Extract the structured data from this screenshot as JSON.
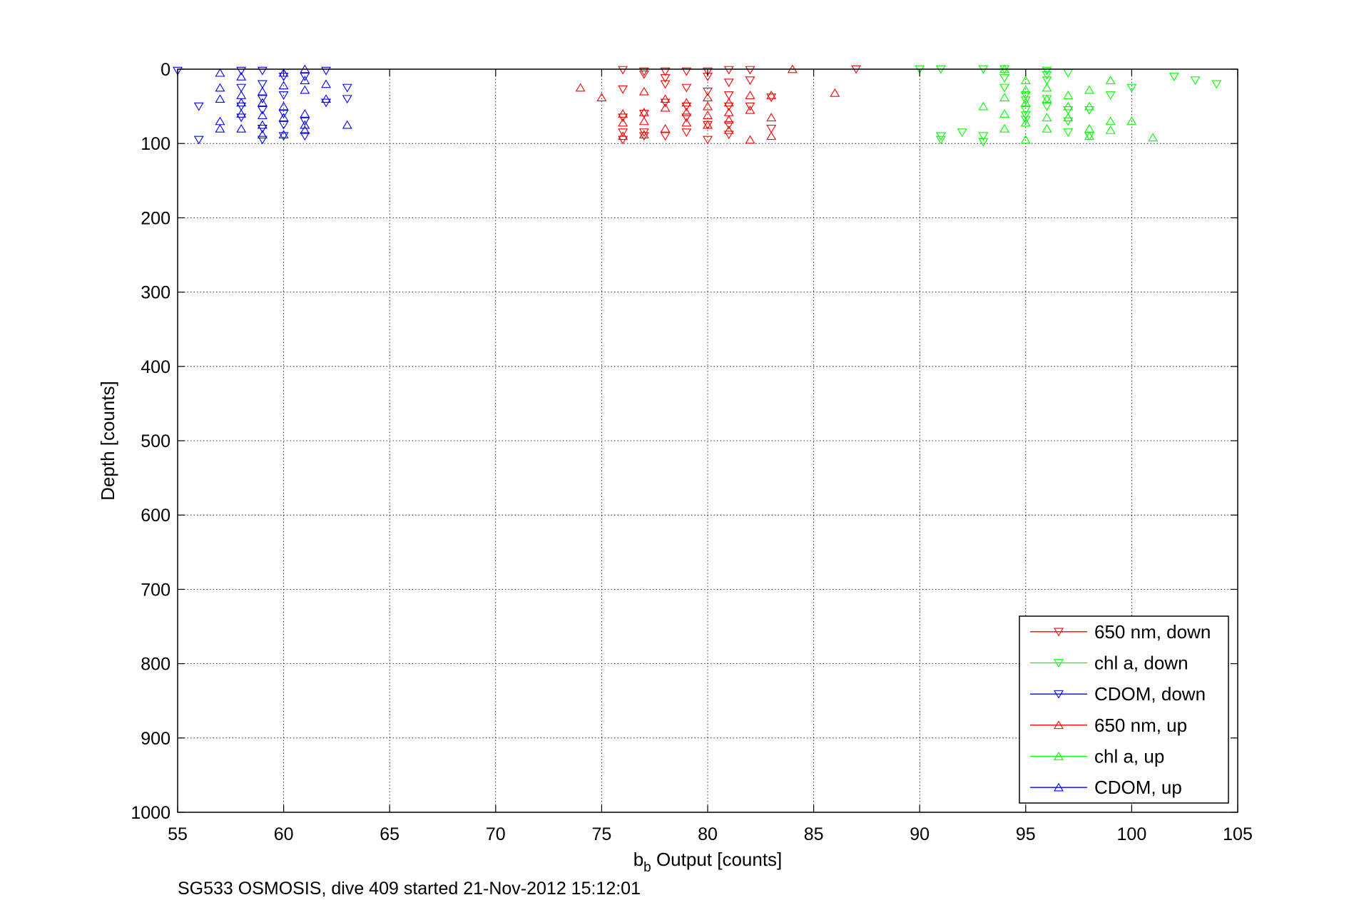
{
  "chart_data": {
    "type": "scatter",
    "title": "",
    "xlabel": {
      "main": "b",
      "sub": "b",
      "rest": " Output [counts]"
    },
    "ylabel": "Depth [counts]",
    "xlim": [
      55,
      105
    ],
    "ylim": [
      0,
      1000
    ],
    "y_reversed": true,
    "xticks": [
      55,
      60,
      65,
      70,
      75,
      80,
      85,
      90,
      95,
      100,
      105
    ],
    "yticks": [
      0,
      100,
      200,
      300,
      400,
      500,
      600,
      700,
      800,
      900,
      1000
    ],
    "grid": true,
    "legend_position": "bottom-right",
    "caption": "SG533 OSMOSIS, dive 409 started 21-Nov-2012 15:12:01",
    "series": [
      {
        "name": "650 nm, down",
        "color": "#ff0000",
        "marker": "triangle-down",
        "points": [
          [
            76,
            1
          ],
          [
            76,
            27
          ],
          [
            76,
            65
          ],
          [
            76,
            85
          ],
          [
            76,
            95
          ],
          [
            77,
            3
          ],
          [
            77,
            7
          ],
          [
            77,
            60
          ],
          [
            77,
            85
          ],
          [
            77,
            90
          ],
          [
            78,
            3
          ],
          [
            78,
            12
          ],
          [
            78,
            20
          ],
          [
            78,
            45
          ],
          [
            78,
            90
          ],
          [
            79,
            3
          ],
          [
            79,
            25
          ],
          [
            79,
            50
          ],
          [
            79,
            65
          ],
          [
            79,
            85
          ],
          [
            80,
            3
          ],
          [
            80,
            10
          ],
          [
            80,
            30
          ],
          [
            80,
            75
          ],
          [
            80,
            95
          ],
          [
            81,
            1
          ],
          [
            81,
            18
          ],
          [
            81,
            35
          ],
          [
            81,
            50
          ],
          [
            81,
            75
          ],
          [
            81,
            88
          ],
          [
            82,
            1
          ],
          [
            82,
            15
          ],
          [
            82,
            50
          ],
          [
            83,
            38
          ],
          [
            83,
            80
          ],
          [
            87,
            0
          ]
        ]
      },
      {
        "name": "chl a, down",
        "color": "#00ff00",
        "marker": "triangle-down",
        "points": [
          [
            90,
            0
          ],
          [
            91,
            0
          ],
          [
            91,
            90
          ],
          [
            91,
            95
          ],
          [
            92,
            85
          ],
          [
            93,
            0
          ],
          [
            93,
            90
          ],
          [
            93,
            98
          ],
          [
            94,
            0
          ],
          [
            94,
            12
          ],
          [
            94,
            25
          ],
          [
            95,
            35
          ],
          [
            95,
            42
          ],
          [
            95,
            55
          ],
          [
            95,
            62
          ],
          [
            95,
            68
          ],
          [
            96,
            2
          ],
          [
            96,
            8
          ],
          [
            96,
            15
          ],
          [
            96,
            40
          ],
          [
            96,
            50
          ],
          [
            97,
            5
          ],
          [
            97,
            55
          ],
          [
            97,
            70
          ],
          [
            97,
            85
          ],
          [
            98,
            55
          ],
          [
            98,
            90
          ],
          [
            99,
            35
          ],
          [
            100,
            25
          ],
          [
            102,
            10
          ],
          [
            103,
            15
          ],
          [
            104,
            20
          ]
        ]
      },
      {
        "name": "CDOM, down",
        "color": "#0000ff",
        "marker": "triangle-down",
        "points": [
          [
            55,
            2
          ],
          [
            56,
            50
          ],
          [
            56,
            95
          ],
          [
            58,
            2
          ],
          [
            58,
            25
          ],
          [
            58,
            50
          ],
          [
            58,
            65
          ],
          [
            59,
            2
          ],
          [
            59,
            20
          ],
          [
            59,
            40
          ],
          [
            59,
            55
          ],
          [
            59,
            80
          ],
          [
            59,
            95
          ],
          [
            60,
            10
          ],
          [
            60,
            35
          ],
          [
            60,
            60
          ],
          [
            60,
            75
          ],
          [
            60,
            90
          ],
          [
            61,
            10
          ],
          [
            61,
            70
          ],
          [
            61,
            90
          ],
          [
            62,
            2
          ],
          [
            62,
            45
          ],
          [
            63,
            25
          ],
          [
            63,
            40
          ]
        ]
      },
      {
        "name": "650 nm, up",
        "color": "#ff0000",
        "marker": "triangle-up",
        "points": [
          [
            74,
            25
          ],
          [
            75,
            38
          ],
          [
            76,
            60
          ],
          [
            76,
            72
          ],
          [
            76,
            90
          ],
          [
            77,
            30
          ],
          [
            77,
            58
          ],
          [
            77,
            70
          ],
          [
            77,
            88
          ],
          [
            78,
            40
          ],
          [
            78,
            52
          ],
          [
            78,
            80
          ],
          [
            79,
            45
          ],
          [
            79,
            58
          ],
          [
            79,
            72
          ],
          [
            80,
            38
          ],
          [
            80,
            50
          ],
          [
            80,
            62
          ],
          [
            80,
            75
          ],
          [
            81,
            45
          ],
          [
            81,
            58
          ],
          [
            81,
            68
          ],
          [
            81,
            82
          ],
          [
            82,
            35
          ],
          [
            82,
            55
          ],
          [
            82,
            95
          ],
          [
            83,
            35
          ],
          [
            83,
            65
          ],
          [
            83,
            90
          ],
          [
            84,
            0
          ],
          [
            86,
            32
          ]
        ]
      },
      {
        "name": "chl a, up",
        "color": "#00ff00",
        "marker": "triangle-up",
        "points": [
          [
            93,
            50
          ],
          [
            94,
            0
          ],
          [
            94,
            38
          ],
          [
            94,
            60
          ],
          [
            94,
            80
          ],
          [
            95,
            15
          ],
          [
            95,
            28
          ],
          [
            95,
            45
          ],
          [
            95,
            72
          ],
          [
            95,
            95
          ],
          [
            96,
            25
          ],
          [
            96,
            40
          ],
          [
            96,
            65
          ],
          [
            96,
            80
          ],
          [
            97,
            35
          ],
          [
            97,
            50
          ],
          [
            97,
            65
          ],
          [
            98,
            28
          ],
          [
            98,
            50
          ],
          [
            98,
            80
          ],
          [
            98,
            90
          ],
          [
            99,
            15
          ],
          [
            99,
            70
          ],
          [
            99,
            82
          ],
          [
            100,
            70
          ],
          [
            101,
            92
          ]
        ]
      },
      {
        "name": "CDOM, up",
        "color": "#0000ff",
        "marker": "triangle-up",
        "points": [
          [
            57,
            5
          ],
          [
            57,
            25
          ],
          [
            57,
            40
          ],
          [
            57,
            70
          ],
          [
            57,
            80
          ],
          [
            58,
            10
          ],
          [
            58,
            35
          ],
          [
            58,
            45
          ],
          [
            58,
            60
          ],
          [
            58,
            80
          ],
          [
            59,
            30
          ],
          [
            59,
            45
          ],
          [
            59,
            62
          ],
          [
            59,
            75
          ],
          [
            59,
            88
          ],
          [
            60,
            5
          ],
          [
            60,
            22
          ],
          [
            60,
            50
          ],
          [
            60,
            65
          ],
          [
            60,
            88
          ],
          [
            61,
            0
          ],
          [
            61,
            15
          ],
          [
            61,
            28
          ],
          [
            61,
            60
          ],
          [
            61,
            75
          ],
          [
            61,
            82
          ],
          [
            62,
            20
          ],
          [
            62,
            40
          ],
          [
            63,
            75
          ]
        ]
      }
    ]
  }
}
